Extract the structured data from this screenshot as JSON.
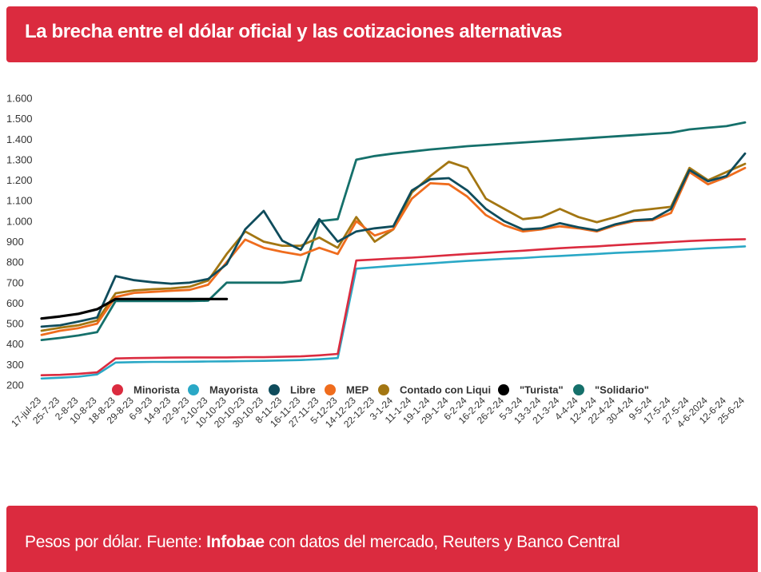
{
  "header": {
    "title": "La brecha entre el dólar oficial y las cotizaciones alternativas"
  },
  "footer": {
    "prefix": "Pesos por dólar. Fuente: ",
    "source": "Infobae",
    "suffix": " con datos del mercado, Reuters y Banco Central"
  },
  "chart_data": {
    "type": "line",
    "y_ticks": [
      "1.600",
      "1.500",
      "1.400",
      "1.300",
      "1.200",
      "1.100",
      "1.000",
      "900",
      "800",
      "700",
      "600",
      "500",
      "400",
      "300",
      "200"
    ],
    "ylim": [
      200,
      1600
    ],
    "grid": false,
    "legend_position": "bottom",
    "x_ticks": [
      "17-jul-23",
      "25-7-23",
      "2-8-23",
      "10-8-23",
      "18-8-23",
      "29-8-23",
      "6-9-23",
      "14-9-23",
      "22-9-23",
      "2-10-23",
      "10-10-23",
      "20-10-23",
      "30-10-23",
      "8-11-23",
      "16-11-23",
      "27-11-23",
      "5-12-23",
      "14-12-23",
      "22-12-23",
      "3-1-24",
      "11-1-24",
      "19-1-24",
      "29-1-24",
      "6-2-24",
      "16-2-24",
      "26-2-24",
      "5-3-24",
      "13-3-24",
      "21-3-24",
      "4-4-24",
      "12-4-24",
      "22-4-24",
      "30-4-24",
      "9-5-24",
      "17-5-24",
      "27-5-24",
      "4-6-2024",
      "12-6-24",
      "25-6-24"
    ],
    "series": [
      {
        "name": "Minorista",
        "color": "#db2b3f",
        "values": [
          248,
          250,
          255,
          262,
          330,
          332,
          333,
          334,
          335,
          335,
          335,
          336,
          336,
          338,
          340,
          345,
          352,
          808,
          813,
          818,
          822,
          828,
          834,
          840,
          845,
          851,
          856,
          862,
          868,
          873,
          877,
          883,
          888,
          893,
          898,
          903,
          907,
          910,
          912
        ]
      },
      {
        "name": "Mayorista",
        "color": "#2aa8c6",
        "values": [
          232,
          236,
          241,
          252,
          310,
          312,
          313,
          313,
          314,
          315,
          316,
          317,
          318,
          320,
          322,
          326,
          332,
          768,
          775,
          782,
          788,
          794,
          800,
          806,
          811,
          816,
          820,
          826,
          830,
          835,
          840,
          845,
          849,
          853,
          858,
          863,
          868,
          872,
          877
        ]
      },
      {
        "name": "Libre",
        "color": "#0f4c5c",
        "values": [
          485,
          492,
          510,
          530,
          732,
          712,
          702,
          695,
          700,
          718,
          790,
          960,
          1050,
          905,
          860,
          1010,
          900,
          950,
          965,
          975,
          1150,
          1205,
          1210,
          1150,
          1060,
          1000,
          960,
          965,
          990,
          970,
          955,
          985,
          1005,
          1010,
          1060,
          1250,
          1195,
          1220,
          1330
        ]
      },
      {
        "name": "MEP",
        "color": "#ef6c1d",
        "values": [
          445,
          465,
          478,
          500,
          630,
          650,
          655,
          660,
          665,
          690,
          800,
          910,
          870,
          850,
          835,
          870,
          840,
          1000,
          930,
          960,
          1110,
          1185,
          1180,
          1120,
          1030,
          980,
          950,
          960,
          975,
          965,
          950,
          980,
          1000,
          1005,
          1040,
          1240,
          1180,
          1215,
          1260
        ]
      },
      {
        "name": "Contado con Liqui",
        "color": "#a37612",
        "values": [
          465,
          480,
          492,
          515,
          648,
          662,
          668,
          672,
          680,
          710,
          840,
          950,
          900,
          880,
          880,
          920,
          870,
          1020,
          900,
          960,
          1140,
          1220,
          1290,
          1260,
          1110,
          1060,
          1010,
          1020,
          1060,
          1020,
          995,
          1020,
          1050,
          1060,
          1070,
          1260,
          1200,
          1240,
          1280
        ]
      },
      {
        "name": "\"Turista\"",
        "color": "#000000",
        "values": [
          525,
          535,
          548,
          570,
          620,
          620,
          620,
          620,
          620,
          620,
          620,
          null,
          null,
          null,
          null,
          null,
          null,
          null,
          null,
          null,
          null,
          null,
          null,
          null,
          null,
          null,
          null,
          null,
          null,
          null,
          null,
          null,
          null,
          null,
          null,
          null,
          null,
          null,
          null
        ]
      },
      {
        "name": "\"Solidario\"",
        "color": "#15706b",
        "values": [
          420,
          430,
          442,
          458,
          610,
          610,
          610,
          610,
          610,
          612,
          700,
          700,
          700,
          700,
          710,
          1000,
          1010,
          1300,
          1318,
          1330,
          1340,
          1350,
          1358,
          1366,
          1372,
          1378,
          1384,
          1390,
          1396,
          1402,
          1408,
          1414,
          1420,
          1426,
          1432,
          1448,
          1456,
          1464,
          1482
        ]
      }
    ]
  }
}
